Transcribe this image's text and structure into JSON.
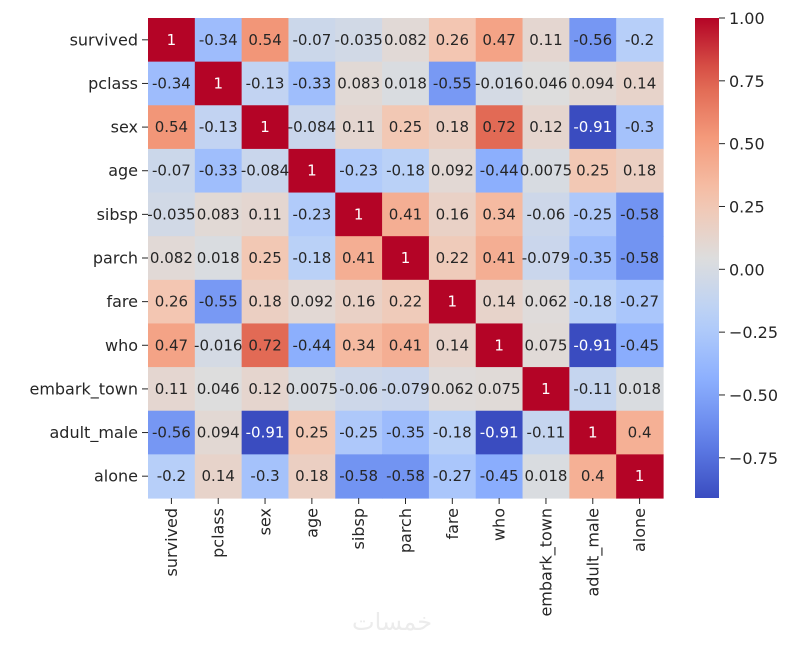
{
  "watermark": "خمسات",
  "chart_data": {
    "type": "heatmap",
    "title": "",
    "xlabel": "",
    "ylabel": "",
    "labels": [
      "survived",
      "pclass",
      "sex",
      "age",
      "sibsp",
      "parch",
      "fare",
      "who",
      "embark_town",
      "adult_male",
      "alone"
    ],
    "annotations": [
      [
        "1",
        "-0.34",
        "0.54",
        "-0.07",
        "-0.035",
        "0.082",
        "0.26",
        "0.47",
        "0.11",
        "-0.56",
        "-0.2"
      ],
      [
        "-0.34",
        "1",
        "-0.13",
        "-0.33",
        "0.083",
        "0.018",
        "-0.55",
        "-0.016",
        "0.046",
        "0.094",
        "0.14"
      ],
      [
        "0.54",
        "-0.13",
        "1",
        "-0.084",
        "0.11",
        "0.25",
        "0.18",
        "0.72",
        "0.12",
        "-0.91",
        "-0.3"
      ],
      [
        "-0.07",
        "-0.33",
        "-0.084",
        "1",
        "-0.23",
        "-0.18",
        "0.092",
        "-0.44",
        "0.0075",
        "0.25",
        "0.18"
      ],
      [
        "-0.035",
        "0.083",
        "0.11",
        "-0.23",
        "1",
        "0.41",
        "0.16",
        "0.34",
        "-0.06",
        "-0.25",
        "-0.58"
      ],
      [
        "0.082",
        "0.018",
        "0.25",
        "-0.18",
        "0.41",
        "1",
        "0.22",
        "0.41",
        "-0.079",
        "-0.35",
        "-0.58"
      ],
      [
        "0.26",
        "-0.55",
        "0.18",
        "0.092",
        "0.16",
        "0.22",
        "1",
        "0.14",
        "0.062",
        "-0.18",
        "-0.27"
      ],
      [
        "0.47",
        "-0.016",
        "0.72",
        "-0.44",
        "0.34",
        "0.41",
        "0.14",
        "1",
        "0.075",
        "-0.91",
        "-0.45"
      ],
      [
        "0.11",
        "0.046",
        "0.12",
        "0.0075",
        "-0.06",
        "-0.079",
        "0.062",
        "0.075",
        "1",
        "-0.11",
        "0.018"
      ],
      [
        "-0.56",
        "0.094",
        "-0.91",
        "0.25",
        "-0.25",
        "-0.35",
        "-0.18",
        "-0.91",
        "-0.11",
        "1",
        "0.4"
      ],
      [
        "-0.2",
        "0.14",
        "-0.3",
        "0.18",
        "-0.58",
        "-0.58",
        "-0.27",
        "-0.45",
        "0.018",
        "0.4",
        "1"
      ]
    ],
    "colormap": "coolwarm",
    "vmin": -0.91,
    "vmax": 1.0,
    "colorbar_ticks": [
      "1.00",
      "0.75",
      "0.50",
      "0.25",
      "0.00",
      "−0.25",
      "−0.50",
      "−0.75"
    ],
    "colorbar_tick_values": [
      1.0,
      0.75,
      0.5,
      0.25,
      0.0,
      -0.25,
      -0.5,
      -0.75
    ]
  }
}
